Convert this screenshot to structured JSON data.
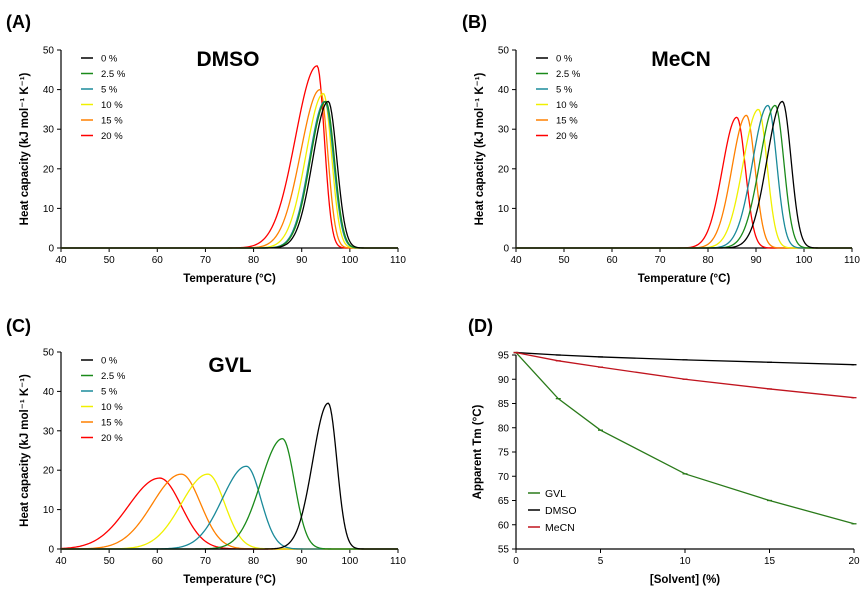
{
  "panels": {
    "A": {
      "label": "(A)",
      "title": "DMSO"
    },
    "B": {
      "label": "(B)",
      "title": "MeCN"
    },
    "C": {
      "label": "(C)",
      "title": "GVL"
    },
    "D": {
      "label": "(D)"
    }
  },
  "thermo_axes": {
    "xlabel": "Temperature (°C)",
    "ylabel": "Heat capacity (kJ mol⁻¹ K⁻¹)",
    "xticks": [
      "40",
      "50",
      "60",
      "70",
      "80",
      "90",
      "100",
      "110"
    ],
    "yticks": [
      "0",
      "10",
      "20",
      "30",
      "40",
      "50"
    ]
  },
  "tm_axes": {
    "xlabel": "[Solvent] (%)",
    "ylabel": "Apparent Tm (°C)",
    "xticks": [
      "0",
      "5",
      "10",
      "15",
      "20"
    ],
    "yticks": [
      "55",
      "60",
      "65",
      "70",
      "75",
      "80",
      "85",
      "90",
      "95"
    ]
  },
  "legend_concentrations": [
    "0 %",
    "2.5 %",
    "5 %",
    "10 %",
    "15 %",
    "20 %"
  ],
  "series_colors": {
    "0 %": "#000000",
    "2.5 %": "#1a8a1a",
    "5 %": "#1a8a9a",
    "10 %": "#f0f000",
    "15 %": "#ff8000",
    "20 %": "#ff0000"
  },
  "chart_data": [
    {
      "panel": "A",
      "type": "line",
      "title": "DMSO",
      "xlabel": "Temperature (°C)",
      "ylabel": "Heat capacity (kJ mol⁻¹ K⁻¹)",
      "xlim": [
        40,
        110
      ],
      "ylim": [
        0,
        50
      ],
      "legend": "top-left",
      "series": [
        {
          "name": "0 %",
          "color": "#000000",
          "peak_x": 95.5,
          "peak_y": 37,
          "width_left": 3.2,
          "width_right": 1.8
        },
        {
          "name": "2.5 %",
          "color": "#1a8a1a",
          "peak_x": 95.0,
          "peak_y": 37,
          "width_left": 3.2,
          "width_right": 1.8
        },
        {
          "name": "5 %",
          "color": "#1a8a9a",
          "peak_x": 94.8,
          "peak_y": 37,
          "width_left": 3.2,
          "width_right": 1.8
        },
        {
          "name": "10 %",
          "color": "#f0f000",
          "peak_x": 94.5,
          "peak_y": 39,
          "width_left": 3.6,
          "width_right": 1.7
        },
        {
          "name": "15 %",
          "color": "#ff8000",
          "peak_x": 93.8,
          "peak_y": 40,
          "width_left": 4.0,
          "width_right": 1.6
        },
        {
          "name": "20 %",
          "color": "#ff0000",
          "peak_x": 93.2,
          "peak_y": 46,
          "width_left": 4.5,
          "width_right": 1.5
        }
      ]
    },
    {
      "panel": "B",
      "type": "line",
      "title": "MeCN",
      "xlabel": "Temperature (°C)",
      "ylabel": "Heat capacity (kJ mol⁻¹ K⁻¹)",
      "xlim": [
        40,
        110
      ],
      "ylim": [
        0,
        50
      ],
      "legend": "top-left",
      "series": [
        {
          "name": "0 %",
          "color": "#000000",
          "peak_x": 95.5,
          "peak_y": 37,
          "width_left": 3.2,
          "width_right": 1.8
        },
        {
          "name": "2.5 %",
          "color": "#1a8a1a",
          "peak_x": 94.0,
          "peak_y": 36,
          "width_left": 3.2,
          "width_right": 1.8
        },
        {
          "name": "5 %",
          "color": "#1a8a9a",
          "peak_x": 92.5,
          "peak_y": 36,
          "width_left": 3.2,
          "width_right": 1.8
        },
        {
          "name": "10 %",
          "color": "#f0f000",
          "peak_x": 90.5,
          "peak_y": 35,
          "width_left": 3.2,
          "width_right": 1.8
        },
        {
          "name": "15 %",
          "color": "#ff8000",
          "peak_x": 88.0,
          "peak_y": 33.5,
          "width_left": 3.0,
          "width_right": 1.8
        },
        {
          "name": "20 %",
          "color": "#ff0000",
          "peak_x": 86.0,
          "peak_y": 33,
          "width_left": 3.0,
          "width_right": 1.8
        }
      ]
    },
    {
      "panel": "C",
      "type": "line",
      "title": "GVL",
      "xlabel": "Temperature (°C)",
      "ylabel": "Heat capacity (kJ mol⁻¹ K⁻¹)",
      "xlim": [
        40,
        110
      ],
      "ylim": [
        0,
        50
      ],
      "legend": "top-left",
      "series": [
        {
          "name": "0 %",
          "color": "#000000",
          "peak_x": 95.5,
          "peak_y": 37,
          "width_left": 3.2,
          "width_right": 1.8
        },
        {
          "name": "2.5 %",
          "color": "#1a8a1a",
          "peak_x": 86.0,
          "peak_y": 28,
          "width_left": 4.5,
          "width_right": 2.5
        },
        {
          "name": "5 %",
          "color": "#1a8a9a",
          "peak_x": 78.5,
          "peak_y": 21,
          "width_left": 5.0,
          "width_right": 3.0
        },
        {
          "name": "10 %",
          "color": "#f0f000",
          "peak_x": 70.5,
          "peak_y": 19,
          "width_left": 5.5,
          "width_right": 3.5
        },
        {
          "name": "15 %",
          "color": "#ff8000",
          "peak_x": 65.0,
          "peak_y": 19,
          "width_left": 6.0,
          "width_right": 4.0
        },
        {
          "name": "20 %",
          "color": "#ff0000",
          "peak_x": 60.5,
          "peak_y": 18,
          "width_left": 6.5,
          "width_right": 4.5
        }
      ]
    },
    {
      "panel": "D",
      "type": "line",
      "xlabel": "[Solvent] (%)",
      "ylabel": "Apparent Tm (°C)",
      "xlim": [
        0,
        20
      ],
      "ylim": [
        55,
        95
      ],
      "legend": "bottom-left",
      "x": [
        0,
        2.5,
        5,
        10,
        15,
        20
      ],
      "series": [
        {
          "name": "GVL",
          "color": "#2a7a1a",
          "values": [
            95.5,
            86.0,
            79.5,
            70.5,
            65.0,
            60.2
          ]
        },
        {
          "name": "DMSO",
          "color": "#000000",
          "values": [
            95.5,
            95.0,
            94.6,
            94.0,
            93.5,
            93.0
          ]
        },
        {
          "name": "MeCN",
          "color": "#c0141e",
          "values": [
            95.5,
            93.8,
            92.5,
            90.0,
            88.0,
            86.2
          ]
        }
      ]
    }
  ]
}
